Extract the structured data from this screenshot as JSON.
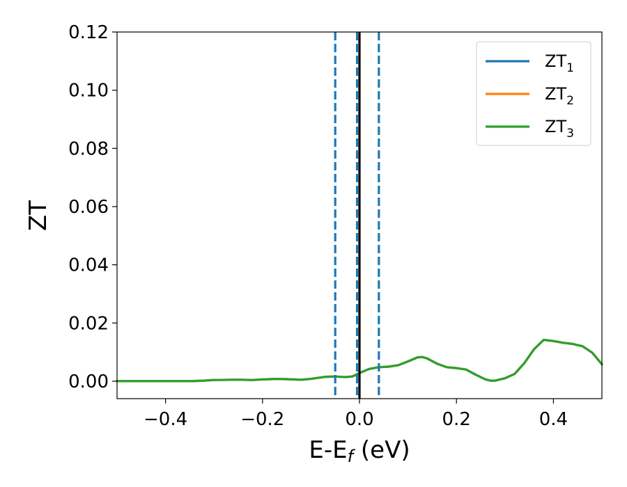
{
  "chart_data": {
    "type": "line",
    "title": "",
    "xlabel": "E-E",
    "xlabel_sub": "f",
    "xlabel_unit": " (eV)",
    "ylabel": "ZT",
    "xlim": [
      -0.5,
      0.5
    ],
    "ylim": [
      -0.006,
      0.12
    ],
    "xticks": [
      -0.4,
      -0.2,
      0.0,
      0.2,
      0.4
    ],
    "xtick_labels": [
      "−0.4",
      "−0.2",
      "0.0",
      "0.2",
      "0.4"
    ],
    "yticks": [
      0.0,
      0.02,
      0.04,
      0.06,
      0.08,
      0.1,
      0.12
    ],
    "ytick_labels": [
      "0.00",
      "0.02",
      "0.04",
      "0.06",
      "0.08",
      "0.10",
      "0.12"
    ],
    "grid": false,
    "legend_position": "top-right",
    "x": [
      -0.5,
      -0.45,
      -0.4,
      -0.35,
      -0.32,
      -0.3,
      -0.25,
      -0.22,
      -0.2,
      -0.17,
      -0.15,
      -0.12,
      -0.1,
      -0.07,
      -0.05,
      -0.03,
      -0.015,
      0.0,
      0.02,
      0.04,
      0.06,
      0.08,
      0.1,
      0.12,
      0.13,
      0.14,
      0.16,
      0.18,
      0.2,
      0.22,
      0.24,
      0.26,
      0.27,
      0.28,
      0.3,
      0.32,
      0.34,
      0.36,
      0.38,
      0.4,
      0.42,
      0.44,
      0.46,
      0.48,
      0.5
    ],
    "series": [
      {
        "name": "ZT",
        "name_sub": "1",
        "color": "#1f77b4",
        "values": [
          0.0,
          0.0,
          0.0,
          0.0,
          0.0002,
          0.0004,
          0.0005,
          0.0004,
          0.0006,
          0.0008,
          0.0007,
          0.0005,
          0.0008,
          0.0015,
          0.0016,
          0.0014,
          0.0016,
          0.0028,
          0.0042,
          0.0048,
          0.005,
          0.0055,
          0.0068,
          0.0082,
          0.0083,
          0.0078,
          0.006,
          0.0048,
          0.0045,
          0.004,
          0.0022,
          0.0006,
          0.0002,
          0.0002,
          0.001,
          0.0025,
          0.0062,
          0.011,
          0.0142,
          0.0138,
          0.0132,
          0.0128,
          0.012,
          0.0098,
          0.0058
        ]
      },
      {
        "name": "ZT",
        "name_sub": "2",
        "color": "#ff7f0e",
        "values": [
          0.0,
          0.0,
          0.0,
          0.0,
          0.0002,
          0.0004,
          0.0005,
          0.0004,
          0.0006,
          0.0008,
          0.0007,
          0.0005,
          0.0008,
          0.0015,
          0.0016,
          0.0014,
          0.0016,
          0.0028,
          0.0042,
          0.0048,
          0.005,
          0.0055,
          0.0068,
          0.0082,
          0.0083,
          0.0078,
          0.006,
          0.0048,
          0.0045,
          0.004,
          0.0022,
          0.0006,
          0.0002,
          0.0002,
          0.001,
          0.0025,
          0.0062,
          0.011,
          0.0142,
          0.0138,
          0.0132,
          0.0128,
          0.012,
          0.0098,
          0.0058
        ]
      },
      {
        "name": "ZT",
        "name_sub": "3",
        "color": "#2ca02c",
        "values": [
          0.0,
          0.0,
          0.0,
          0.0,
          0.0002,
          0.0004,
          0.0005,
          0.0004,
          0.0006,
          0.0008,
          0.0007,
          0.0005,
          0.0008,
          0.0015,
          0.0016,
          0.0014,
          0.0016,
          0.0028,
          0.0042,
          0.0048,
          0.005,
          0.0055,
          0.0068,
          0.0082,
          0.0083,
          0.0078,
          0.006,
          0.0048,
          0.0045,
          0.004,
          0.0022,
          0.0006,
          0.0002,
          0.0002,
          0.001,
          0.0025,
          0.0062,
          0.011,
          0.0142,
          0.0138,
          0.0132,
          0.0128,
          0.012,
          0.0098,
          0.0058
        ]
      }
    ],
    "vlines": [
      {
        "x": -0.05,
        "style": "dashed",
        "color": "#1f77b4"
      },
      {
        "x": -0.005,
        "style": "dashed",
        "color": "#1f77b4"
      },
      {
        "x": 0.0,
        "style": "solid",
        "color": "#000000"
      },
      {
        "x": 0.04,
        "style": "dashed",
        "color": "#1f77b4"
      }
    ]
  }
}
